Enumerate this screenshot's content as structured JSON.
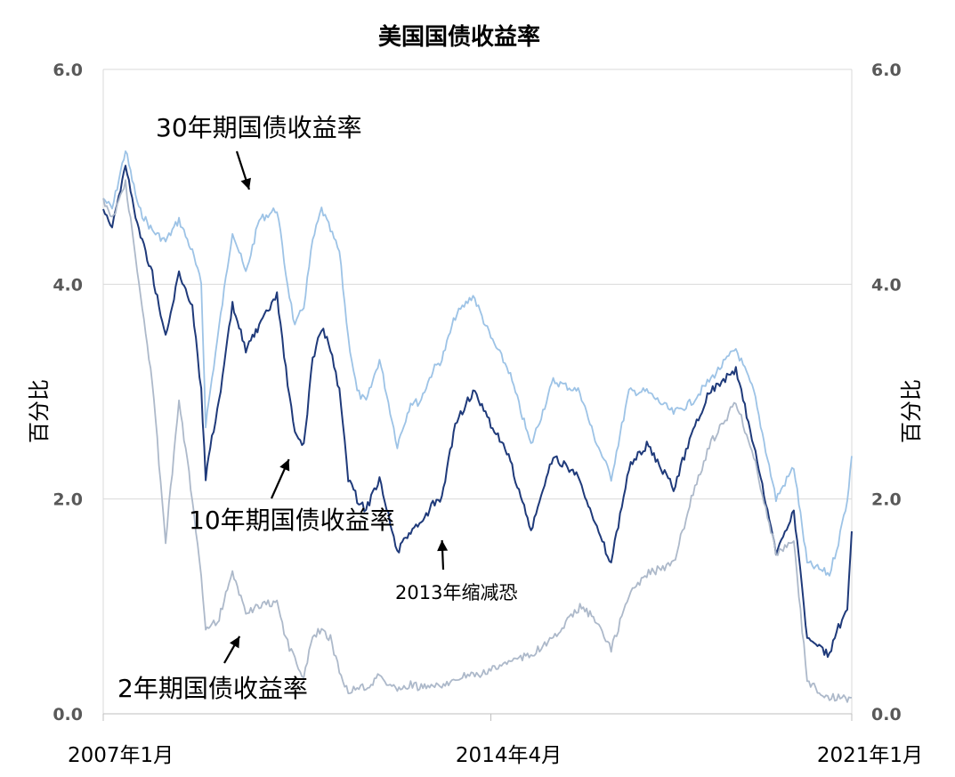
{
  "chart_data": {
    "type": "line",
    "title": "美国国债收益率",
    "ylabel_left": "百分比",
    "ylabel_right": "百分比",
    "ylim": [
      0,
      6
    ],
    "yticks": [
      "0.0",
      "2.0",
      "4.0",
      "6.0"
    ],
    "xlim": [
      "2007-01",
      "2021-01"
    ],
    "xticks": [
      {
        "label": "2007年1月",
        "date": "2007-01"
      },
      {
        "label": "2014年4月",
        "date": "2014-04"
      },
      {
        "label": "2021年1月",
        "date": "2021-01"
      }
    ],
    "grid": "horizontal",
    "annotations": [
      {
        "text": "30年期国债收益率",
        "series": "30年期国债收益率",
        "date": "2009-10",
        "value": 4.85
      },
      {
        "text": "10年期国债收益率",
        "series": "10年期国债收益率",
        "date": "2010-07",
        "value": 2.4
      },
      {
        "text": "2年期国债收益率",
        "series": "2年期国债收益率",
        "date": "2009-08",
        "value": 0.75
      },
      {
        "text": "2013年缩减恐",
        "date": "2013-05",
        "value": 1.65
      }
    ],
    "series": [
      {
        "name": "30年期国债收益率",
        "color": "#9dc3e6",
        "points": [
          [
            "2007-01",
            4.8
          ],
          [
            "2007-03",
            4.7
          ],
          [
            "2007-06",
            5.25
          ],
          [
            "2007-09",
            4.7
          ],
          [
            "2007-12",
            4.5
          ],
          [
            "2008-03",
            4.4
          ],
          [
            "2008-06",
            4.6
          ],
          [
            "2008-09",
            4.3
          ],
          [
            "2008-11",
            4.0
          ],
          [
            "2008-12",
            2.7
          ],
          [
            "2009-01",
            3.0
          ],
          [
            "2009-03",
            3.6
          ],
          [
            "2009-06",
            4.5
          ],
          [
            "2009-09",
            4.1
          ],
          [
            "2009-12",
            4.6
          ],
          [
            "2010-04",
            4.7
          ],
          [
            "2010-06",
            4.1
          ],
          [
            "2010-08",
            3.6
          ],
          [
            "2010-10",
            3.8
          ],
          [
            "2010-12",
            4.4
          ],
          [
            "2011-02",
            4.7
          ],
          [
            "2011-04",
            4.5
          ],
          [
            "2011-06",
            4.3
          ],
          [
            "2011-08",
            3.5
          ],
          [
            "2011-10",
            3.0
          ],
          [
            "2011-12",
            2.9
          ],
          [
            "2012-03",
            3.3
          ],
          [
            "2012-07",
            2.5
          ],
          [
            "2012-10",
            2.9
          ],
          [
            "2012-12",
            2.9
          ],
          [
            "2013-03",
            3.2
          ],
          [
            "2013-05",
            3.3
          ],
          [
            "2013-08",
            3.7
          ],
          [
            "2013-12",
            3.9
          ],
          [
            "2014-04",
            3.5
          ],
          [
            "2014-08",
            3.2
          ],
          [
            "2015-01",
            2.5
          ],
          [
            "2015-06",
            3.1
          ],
          [
            "2015-12",
            3.0
          ],
          [
            "2016-03",
            2.6
          ],
          [
            "2016-07",
            2.2
          ],
          [
            "2016-11",
            3.0
          ],
          [
            "2017-03",
            3.0
          ],
          [
            "2017-09",
            2.8
          ],
          [
            "2018-01",
            2.9
          ],
          [
            "2018-05",
            3.1
          ],
          [
            "2018-11",
            3.4
          ],
          [
            "2019-03",
            3.0
          ],
          [
            "2019-08",
            2.0
          ],
          [
            "2019-12",
            2.3
          ],
          [
            "2020-03",
            1.4
          ],
          [
            "2020-08",
            1.3
          ],
          [
            "2020-10",
            1.6
          ],
          [
            "2020-12",
            2.0
          ],
          [
            "2021-01",
            2.4
          ]
        ]
      },
      {
        "name": "10年期国债收益率",
        "color": "#1f3a7a",
        "points": [
          [
            "2007-01",
            4.7
          ],
          [
            "2007-03",
            4.55
          ],
          [
            "2007-06",
            5.1
          ],
          [
            "2007-09",
            4.5
          ],
          [
            "2007-12",
            4.1
          ],
          [
            "2008-03",
            3.5
          ],
          [
            "2008-06",
            4.1
          ],
          [
            "2008-09",
            3.8
          ],
          [
            "2008-11",
            3.0
          ],
          [
            "2008-12",
            2.2
          ],
          [
            "2009-01",
            2.5
          ],
          [
            "2009-03",
            2.9
          ],
          [
            "2009-06",
            3.8
          ],
          [
            "2009-09",
            3.4
          ],
          [
            "2009-12",
            3.6
          ],
          [
            "2010-04",
            3.9
          ],
          [
            "2010-06",
            3.2
          ],
          [
            "2010-08",
            2.6
          ],
          [
            "2010-10",
            2.5
          ],
          [
            "2010-12",
            3.3
          ],
          [
            "2011-02",
            3.6
          ],
          [
            "2011-04",
            3.4
          ],
          [
            "2011-06",
            3.0
          ],
          [
            "2011-08",
            2.2
          ],
          [
            "2011-10",
            2.0
          ],
          [
            "2011-12",
            1.9
          ],
          [
            "2012-03",
            2.2
          ],
          [
            "2012-07",
            1.5
          ],
          [
            "2012-10",
            1.7
          ],
          [
            "2012-12",
            1.75
          ],
          [
            "2013-03",
            1.95
          ],
          [
            "2013-05",
            2.0
          ],
          [
            "2013-08",
            2.7
          ],
          [
            "2013-12",
            3.0
          ],
          [
            "2014-04",
            2.7
          ],
          [
            "2014-08",
            2.4
          ],
          [
            "2015-01",
            1.7
          ],
          [
            "2015-06",
            2.4
          ],
          [
            "2015-12",
            2.2
          ],
          [
            "2016-03",
            1.8
          ],
          [
            "2016-07",
            1.4
          ],
          [
            "2016-11",
            2.3
          ],
          [
            "2017-03",
            2.5
          ],
          [
            "2017-09",
            2.1
          ],
          [
            "2018-01",
            2.6
          ],
          [
            "2018-05",
            3.0
          ],
          [
            "2018-11",
            3.2
          ],
          [
            "2019-03",
            2.5
          ],
          [
            "2019-08",
            1.5
          ],
          [
            "2019-12",
            1.9
          ],
          [
            "2020-03",
            0.7
          ],
          [
            "2020-08",
            0.55
          ],
          [
            "2020-10",
            0.8
          ],
          [
            "2020-12",
            0.95
          ],
          [
            "2021-01",
            1.7
          ]
        ]
      },
      {
        "name": "2年期国债收益率",
        "color": "#adb9ca",
        "points": [
          [
            "2007-01",
            4.8
          ],
          [
            "2007-03",
            4.6
          ],
          [
            "2007-06",
            4.95
          ],
          [
            "2007-09",
            4.0
          ],
          [
            "2007-12",
            3.1
          ],
          [
            "2008-03",
            1.6
          ],
          [
            "2008-06",
            2.9
          ],
          [
            "2008-09",
            2.0
          ],
          [
            "2008-11",
            1.3
          ],
          [
            "2008-12",
            0.8
          ],
          [
            "2009-01",
            0.8
          ],
          [
            "2009-03",
            0.9
          ],
          [
            "2009-06",
            1.3
          ],
          [
            "2009-09",
            0.95
          ],
          [
            "2009-12",
            1.0
          ],
          [
            "2010-04",
            1.05
          ],
          [
            "2010-06",
            0.7
          ],
          [
            "2010-08",
            0.5
          ],
          [
            "2010-10",
            0.35
          ],
          [
            "2010-12",
            0.7
          ],
          [
            "2011-02",
            0.8
          ],
          [
            "2011-04",
            0.7
          ],
          [
            "2011-06",
            0.4
          ],
          [
            "2011-08",
            0.2
          ],
          [
            "2011-10",
            0.25
          ],
          [
            "2011-12",
            0.25
          ],
          [
            "2012-03",
            0.35
          ],
          [
            "2012-07",
            0.22
          ],
          [
            "2012-10",
            0.27
          ],
          [
            "2012-12",
            0.25
          ],
          [
            "2013-03",
            0.25
          ],
          [
            "2013-05",
            0.25
          ],
          [
            "2013-08",
            0.35
          ],
          [
            "2013-12",
            0.35
          ],
          [
            "2014-04",
            0.4
          ],
          [
            "2014-08",
            0.5
          ],
          [
            "2015-01",
            0.55
          ],
          [
            "2015-06",
            0.7
          ],
          [
            "2015-12",
            1.0
          ],
          [
            "2016-03",
            0.9
          ],
          [
            "2016-07",
            0.6
          ],
          [
            "2016-11",
            1.1
          ],
          [
            "2017-03",
            1.3
          ],
          [
            "2017-09",
            1.4
          ],
          [
            "2018-01",
            2.0
          ],
          [
            "2018-05",
            2.5
          ],
          [
            "2018-11",
            2.9
          ],
          [
            "2019-03",
            2.4
          ],
          [
            "2019-08",
            1.5
          ],
          [
            "2019-12",
            1.6
          ],
          [
            "2020-03",
            0.3
          ],
          [
            "2020-08",
            0.15
          ],
          [
            "2020-10",
            0.15
          ],
          [
            "2020-12",
            0.13
          ],
          [
            "2021-01",
            0.15
          ]
        ]
      }
    ]
  }
}
